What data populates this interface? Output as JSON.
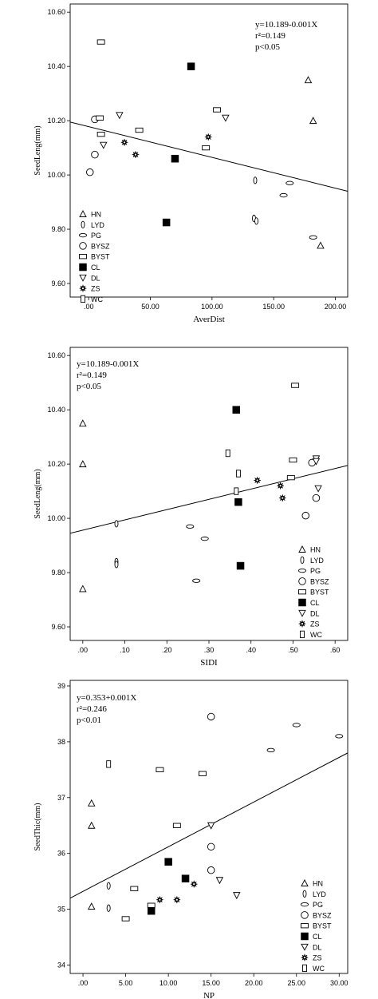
{
  "chart_data": [
    {
      "type": "scatter",
      "xlabel": "AverDist",
      "ylabel": "SeedLeng(mm)",
      "xlim": [
        -15,
        210
      ],
      "ylim": [
        9.55,
        10.63
      ],
      "xticks": [
        0,
        50,
        100,
        150,
        200
      ],
      "xtick_labels": [
        ".00",
        "50.00",
        "100.00",
        "150.00",
        "200.00"
      ],
      "yticks": [
        9.6,
        9.8,
        10.0,
        10.2,
        10.4,
        10.6
      ],
      "ytick_labels": [
        "9.60",
        "9.80",
        "10.00",
        "10.20",
        "10.40",
        "10.60"
      ],
      "annotations": [
        "y=10.189-0.001X",
        "r²=0.149",
        "p<0.05"
      ],
      "annotation_position": "top-right",
      "legend_position": "bottom-left",
      "fit_line": {
        "x": [
          -15,
          210
        ],
        "y": [
          10.195,
          9.94
        ]
      },
      "series": [
        {
          "name": "HN",
          "marker": "triangle-up",
          "points": [
            [
              178,
              10.35
            ],
            [
              182,
              10.2
            ],
            [
              188,
              9.74
            ]
          ]
        },
        {
          "name": "LYD",
          "marker": "thin-ellipse",
          "points": [
            [
              135,
              9.98
            ],
            [
              134,
              9.84
            ],
            [
              136,
              9.83
            ]
          ]
        },
        {
          "name": "PG",
          "marker": "flat-ellipse",
          "points": [
            [
              163,
              9.97
            ],
            [
              158,
              9.925
            ],
            [
              182,
              9.77
            ]
          ]
        },
        {
          "name": "BYSZ",
          "marker": "circle",
          "points": [
            [
              5,
              10.205
            ],
            [
              5,
              10.075
            ],
            [
              1,
              10.01
            ]
          ]
        },
        {
          "name": "BYST",
          "marker": "rectangle",
          "points": [
            [
              10,
              10.49
            ],
            [
              9,
              10.21
            ],
            [
              10,
              10.15
            ],
            [
              41,
              10.165
            ],
            [
              95,
              10.1
            ],
            [
              104,
              10.24
            ]
          ]
        },
        {
          "name": "CL",
          "marker": "filled-square",
          "points": [
            [
              83,
              10.4
            ],
            [
              70,
              10.06
            ],
            [
              63,
              9.825
            ]
          ]
        },
        {
          "name": "DL",
          "marker": "triangle-down",
          "points": [
            [
              25,
              10.22
            ],
            [
              12,
              10.11
            ],
            [
              111,
              10.21
            ]
          ]
        },
        {
          "name": "ZS",
          "marker": "star",
          "points": [
            [
              29,
              10.12
            ],
            [
              38,
              10.075
            ],
            [
              97,
              10.14
            ]
          ]
        },
        {
          "name": "WC",
          "marker": "tall-rectangle",
          "points": []
        }
      ]
    },
    {
      "type": "scatter",
      "xlabel": "SIDI",
      "ylabel": "SeedLeng(mm)",
      "xlim": [
        -0.03,
        0.63
      ],
      "ylim": [
        9.55,
        10.63
      ],
      "xticks": [
        0,
        0.1,
        0.2,
        0.3,
        0.4,
        0.5,
        0.6
      ],
      "xtick_labels": [
        ".00",
        ".10",
        ".20",
        ".30",
        ".40",
        ".50",
        ".60"
      ],
      "yticks": [
        9.6,
        9.8,
        10.0,
        10.2,
        10.4,
        10.6
      ],
      "ytick_labels": [
        "9.60",
        "9.80",
        "10.00",
        "10.20",
        "10.40",
        "10.60"
      ],
      "annotations": [
        "y=10.189-0.001X",
        "r²=0.149",
        "p<0.05"
      ],
      "annotation_position": "top-left",
      "legend_position": "bottom-right",
      "fit_line": {
        "x": [
          -0.03,
          0.63
        ],
        "y": [
          9.945,
          10.195
        ]
      },
      "series": [
        {
          "name": "HN",
          "marker": "triangle-up",
          "points": [
            [
              0,
              10.35
            ],
            [
              0,
              10.2
            ],
            [
              0,
              9.74
            ]
          ]
        },
        {
          "name": "LYD",
          "marker": "thin-ellipse",
          "points": [
            [
              0.08,
              9.98
            ],
            [
              0.08,
              9.84
            ],
            [
              0.08,
              9.83
            ]
          ]
        },
        {
          "name": "PG",
          "marker": "flat-ellipse",
          "points": [
            [
              0.255,
              9.97
            ],
            [
              0.29,
              9.925
            ],
            [
              0.27,
              9.77
            ]
          ]
        },
        {
          "name": "BYSZ",
          "marker": "circle",
          "points": [
            [
              0.545,
              10.205
            ],
            [
              0.555,
              10.075
            ],
            [
              0.53,
              10.01
            ]
          ]
        },
        {
          "name": "BYST",
          "marker": "rectangle",
          "points": [
            [
              0.505,
              10.49
            ],
            [
              0.5,
              10.215
            ],
            [
              0.495,
              10.15
            ]
          ]
        },
        {
          "name": "CL",
          "marker": "filled-square",
          "points": [
            [
              0.365,
              10.4
            ],
            [
              0.37,
              10.06
            ],
            [
              0.375,
              9.825
            ]
          ]
        },
        {
          "name": "DL",
          "marker": "triangle-down",
          "points": [
            [
              0.555,
              10.22
            ],
            [
              0.56,
              10.11
            ],
            [
              0.555,
              10.21
            ]
          ]
        },
        {
          "name": "ZS",
          "marker": "star",
          "points": [
            [
              0.415,
              10.14
            ],
            [
              0.47,
              10.12
            ],
            [
              0.475,
              10.075
            ]
          ]
        },
        {
          "name": "WC",
          "marker": "tall-rectangle",
          "points": [
            [
              0.345,
              10.24
            ],
            [
              0.37,
              10.165
            ],
            [
              0.365,
              10.1
            ]
          ]
        }
      ]
    },
    {
      "type": "scatter",
      "xlabel": "NP",
      "ylabel": "SeedThic(mm)",
      "xlim": [
        -1.5,
        31
      ],
      "ylim": [
        33.85,
        39.1
      ],
      "xticks": [
        0,
        5,
        10,
        15,
        20,
        25,
        30
      ],
      "xtick_labels": [
        ".00",
        "5.00",
        "10.00",
        "15.00",
        "20.00",
        "25.00",
        "30.00"
      ],
      "yticks": [
        34,
        35,
        36,
        37,
        38,
        39
      ],
      "ytick_labels": [
        "34",
        "35",
        "36",
        "37",
        "38",
        "39"
      ],
      "annotations": [
        "y=0.353+0.001X",
        "r²=0.246",
        "p<0.01"
      ],
      "annotation_position": "top-left",
      "legend_position": "bottom-right",
      "fit_line": {
        "x": [
          -1.5,
          31
        ],
        "y": [
          35.2,
          37.8
        ]
      },
      "series": [
        {
          "name": "HN",
          "marker": "triangle-up",
          "points": [
            [
              1,
              36.9
            ],
            [
              1,
              36.5
            ],
            [
              1,
              35.05
            ]
          ]
        },
        {
          "name": "LYD",
          "marker": "thin-ellipse",
          "points": [
            [
              3,
              35.42
            ],
            [
              3,
              35.02
            ]
          ]
        },
        {
          "name": "PG",
          "marker": "flat-ellipse",
          "points": [
            [
              22,
              37.85
            ],
            [
              25,
              38.3
            ],
            [
              30,
              38.1
            ]
          ]
        },
        {
          "name": "BYSZ",
          "marker": "circle",
          "points": [
            [
              15,
              38.45
            ],
            [
              15,
              36.12
            ],
            [
              15,
              35.7
            ]
          ]
        },
        {
          "name": "BYST",
          "marker": "rectangle",
          "points": [
            [
              9,
              37.5
            ],
            [
              14,
              37.43
            ],
            [
              11,
              36.5
            ],
            [
              6,
              35.37
            ],
            [
              5,
              34.83
            ],
            [
              8,
              35.07
            ]
          ]
        },
        {
          "name": "CL",
          "marker": "filled-square",
          "points": [
            [
              10,
              35.85
            ],
            [
              12,
              35.55
            ],
            [
              8,
              34.97
            ]
          ]
        },
        {
          "name": "DL",
          "marker": "triangle-down",
          "points": [
            [
              15,
              36.5
            ],
            [
              16,
              35.52
            ],
            [
              18,
              35.25
            ]
          ]
        },
        {
          "name": "ZS",
          "marker": "star",
          "points": [
            [
              9,
              35.17
            ],
            [
              11,
              35.17
            ],
            [
              13,
              35.45
            ]
          ]
        },
        {
          "name": "WC",
          "marker": "tall-rectangle",
          "points": [
            [
              3,
              37.6
            ]
          ]
        }
      ]
    }
  ]
}
